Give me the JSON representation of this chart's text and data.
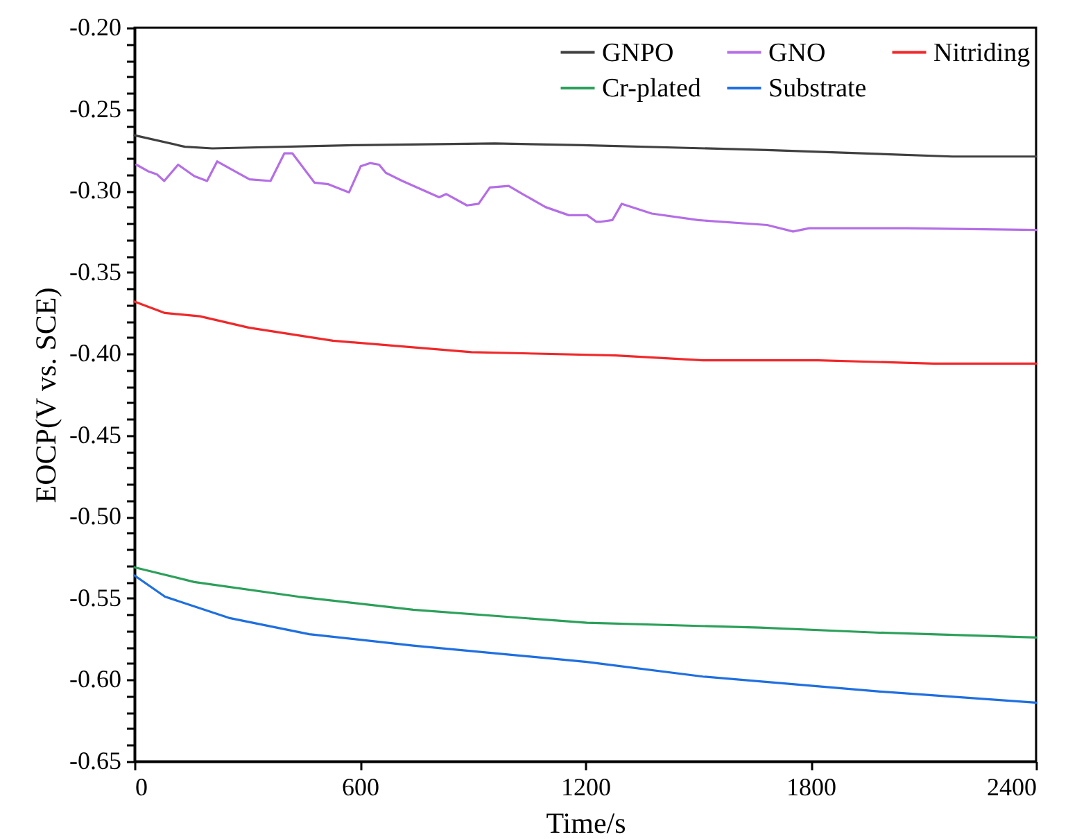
{
  "chart_data": {
    "type": "line",
    "xlabel": "Time/s",
    "ylabel": "EOCP(V vs. SCE)",
    "xlim": [
      0,
      2400
    ],
    "xticks": [
      0,
      600,
      1200,
      1800,
      2400
    ],
    "ylim": [
      -0.65,
      -0.2
    ],
    "yticks": [
      {
        "value": -0.65,
        "label": "-0.65"
      },
      {
        "value": -0.64,
        "label": null
      },
      {
        "value": -0.63,
        "label": null
      },
      {
        "value": -0.62,
        "label": null
      },
      {
        "value": -0.61,
        "label": null
      },
      {
        "value": -0.6,
        "label": "-0.60"
      },
      {
        "value": -0.59,
        "label": null
      },
      {
        "value": -0.58,
        "label": null
      },
      {
        "value": -0.57,
        "label": null
      },
      {
        "value": -0.56,
        "label": null
      },
      {
        "value": -0.55,
        "label": "-0.55"
      },
      {
        "value": -0.54,
        "label": null
      },
      {
        "value": -0.53,
        "label": null
      },
      {
        "value": -0.52,
        "label": null
      },
      {
        "value": -0.51,
        "label": null
      },
      {
        "value": -0.5,
        "label": "-0.50"
      },
      {
        "value": -0.49,
        "label": null
      },
      {
        "value": -0.48,
        "label": null
      },
      {
        "value": -0.47,
        "label": null
      },
      {
        "value": -0.46,
        "label": null
      },
      {
        "value": -0.45,
        "label": "-0.45"
      },
      {
        "value": -0.44,
        "label": null
      },
      {
        "value": -0.43,
        "label": null
      },
      {
        "value": -0.42,
        "label": null
      },
      {
        "value": -0.41,
        "label": null
      },
      {
        "value": -0.4,
        "label": "-0.40"
      },
      {
        "value": -0.39,
        "label": null
      },
      {
        "value": -0.38,
        "label": null
      },
      {
        "value": -0.37,
        "label": null
      },
      {
        "value": -0.36,
        "label": null
      },
      {
        "value": -0.35,
        "label": "-0.35"
      },
      {
        "value": -0.34,
        "label": null
      },
      {
        "value": -0.33,
        "label": null
      },
      {
        "value": -0.32,
        "label": null
      },
      {
        "value": -0.31,
        "label": null
      },
      {
        "value": -0.3,
        "label": "-0.30"
      },
      {
        "value": -0.29,
        "label": null
      },
      {
        "value": -0.28,
        "label": null
      },
      {
        "value": -0.27,
        "label": null
      },
      {
        "value": -0.26,
        "label": null
      },
      {
        "value": -0.25,
        "label": "-0.25"
      },
      {
        "value": -0.24,
        "label": null
      },
      {
        "value": -0.23,
        "label": null
      },
      {
        "value": -0.22,
        "label": null
      },
      {
        "value": -0.21,
        "label": null
      },
      {
        "value": -0.2,
        "label": "-0.20"
      }
    ],
    "legend": "top right",
    "grid": false,
    "marker": "none",
    "line_style": "solid",
    "series": [
      {
        "name": "GNPO",
        "color": "#404040",
        "x": [
          0,
          134,
          207,
          590,
          959,
          1193,
          1684,
          2177,
          2400
        ],
        "values": [
          -0.266,
          -0.273,
          -0.274,
          -0.272,
          -0.271,
          -0.272,
          -0.275,
          -0.279,
          -0.279
        ]
      },
      {
        "name": "GNO",
        "color": "#b46ee6",
        "x": [
          5,
          36,
          60,
          79,
          116,
          159,
          193,
          220,
          306,
          362,
          399,
          420,
          479,
          516,
          571,
          602,
          627,
          651,
          669,
          713,
          762,
          811,
          830,
          885,
          916,
          946,
          996,
          1033,
          1094,
          1156,
          1205,
          1229,
          1242,
          1272,
          1297,
          1377,
          1500,
          1684,
          1753,
          1796,
          2053,
          2400
        ],
        "values": [
          -0.284,
          -0.288,
          -0.29,
          -0.294,
          -0.284,
          -0.291,
          -0.294,
          -0.282,
          -0.293,
          -0.294,
          -0.277,
          -0.277,
          -0.295,
          -0.296,
          -0.301,
          -0.285,
          -0.283,
          -0.284,
          -0.289,
          -0.294,
          -0.299,
          -0.304,
          -0.302,
          -0.309,
          -0.308,
          -0.298,
          -0.297,
          -0.302,
          -0.31,
          -0.315,
          -0.315,
          -0.319,
          -0.319,
          -0.318,
          -0.308,
          -0.314,
          -0.318,
          -0.321,
          -0.325,
          -0.323,
          -0.323,
          -0.324
        ]
      },
      {
        "name": "Nitriding",
        "color": "#f0282a",
        "x": [
          0,
          81,
          174,
          305,
          528,
          897,
          1281,
          1513,
          1820,
          2127,
          2400
        ],
        "values": [
          -0.368,
          -0.375,
          -0.377,
          -0.384,
          -0.392,
          -0.399,
          -0.401,
          -0.404,
          -0.404,
          -0.406,
          -0.406
        ]
      },
      {
        "name": "Cr-plated",
        "color": "#2ca05a",
        "x": [
          0,
          159,
          436,
          742,
          1204,
          1665,
          1974,
          2400
        ],
        "values": [
          -0.531,
          -0.54,
          -0.549,
          -0.557,
          -0.565,
          -0.568,
          -0.571,
          -0.574
        ]
      },
      {
        "name": "Substrate",
        "color": "#1f6fe0",
        "x": [
          0,
          81,
          251,
          465,
          742,
          1204,
          1513,
          1974,
          2400
        ],
        "values": [
          -0.536,
          -0.549,
          -0.562,
          -0.572,
          -0.579,
          -0.589,
          -0.598,
          -0.607,
          -0.614
        ]
      }
    ]
  }
}
